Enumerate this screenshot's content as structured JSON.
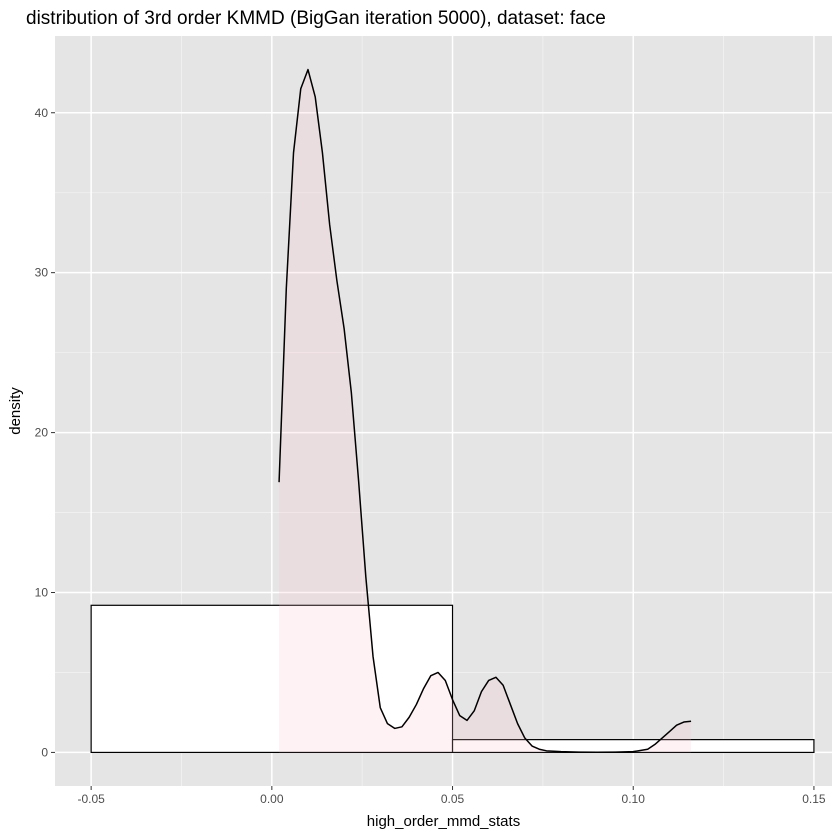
{
  "chart_data": {
    "type": "histogram",
    "title": "distribution of 3rd order KMMD (BigGan iteration 5000), dataset: face",
    "xlabel": "high_order_mmd_stats",
    "ylabel": "density",
    "xlim": [
      -0.06,
      0.155
    ],
    "ylim": [
      -2.1,
      44.8
    ],
    "x_ticks": [
      -0.05,
      0.0,
      0.05,
      0.1,
      0.15
    ],
    "x_tick_labels": [
      "-0.05",
      "0.00",
      "0.05",
      "0.10",
      "0.15"
    ],
    "y_ticks": [
      0,
      10,
      20,
      30,
      40
    ],
    "y_tick_labels": [
      "0",
      "10",
      "20",
      "30",
      "40"
    ],
    "grid": true,
    "panel_background": "#e5e5e5",
    "bars": [
      {
        "x0": -0.05,
        "x1": 0.05,
        "height": 9.2
      },
      {
        "x0": 0.05,
        "x1": 0.15,
        "height": 0.8
      }
    ],
    "bar_fill": "#ffffff",
    "bar_outline": "#000000",
    "density_fill": "#ffc0cb",
    "density_fill_opacity": 0.2,
    "density_curve": {
      "x": [
        0.002,
        0.004,
        0.006,
        0.008,
        0.01,
        0.012,
        0.014,
        0.016,
        0.018,
        0.02,
        0.022,
        0.024,
        0.026,
        0.028,
        0.03,
        0.032,
        0.034,
        0.036,
        0.038,
        0.04,
        0.042,
        0.044,
        0.046,
        0.048,
        0.05,
        0.052,
        0.054,
        0.056,
        0.058,
        0.06,
        0.062,
        0.064,
        0.066,
        0.068,
        0.07,
        0.072,
        0.074,
        0.076,
        0.08,
        0.085,
        0.09,
        0.095,
        0.1,
        0.104,
        0.106,
        0.108,
        0.11,
        0.112,
        0.114,
        0.116
      ],
      "y": [
        16.9,
        29.0,
        37.5,
        41.5,
        42.7,
        41.0,
        37.5,
        33.0,
        29.5,
        26.5,
        22.5,
        17.0,
        11.0,
        6.0,
        2.8,
        1.8,
        1.5,
        1.6,
        2.2,
        3.0,
        4.0,
        4.8,
        5.0,
        4.5,
        3.3,
        2.3,
        2.0,
        2.6,
        3.8,
        4.5,
        4.7,
        4.2,
        3.0,
        1.8,
        0.9,
        0.4,
        0.2,
        0.1,
        0.05,
        0.02,
        0.01,
        0.02,
        0.05,
        0.2,
        0.5,
        0.9,
        1.3,
        1.7,
        1.9,
        1.95
      ]
    }
  }
}
